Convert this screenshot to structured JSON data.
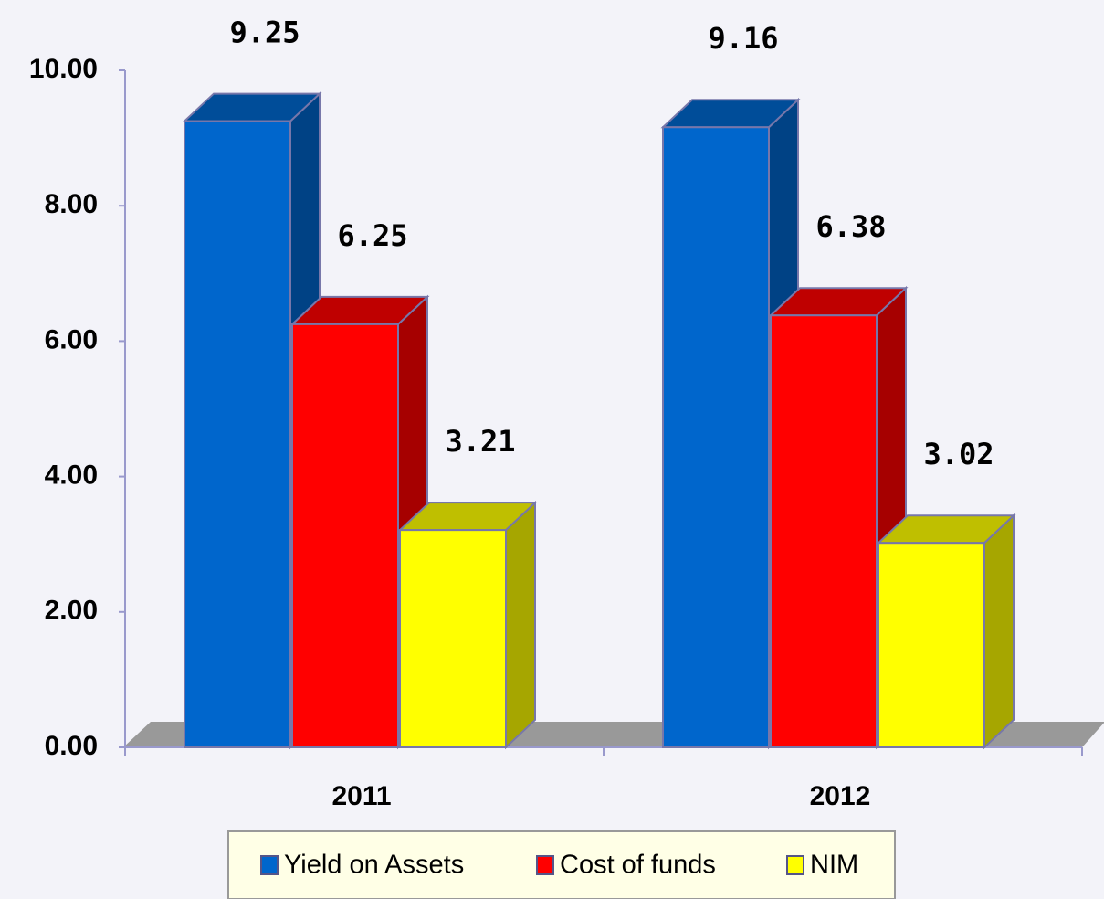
{
  "chart_data": {
    "type": "bar3d",
    "categories": [
      "2011",
      "2012"
    ],
    "series": [
      {
        "name": "Yield on Assets",
        "color": "#0066cc",
        "values": [
          9.25,
          9.16
        ]
      },
      {
        "name": "Cost of funds",
        "color": "#ff0000",
        "values": [
          6.25,
          6.38
        ]
      },
      {
        "name": "NIM",
        "color": "#ffff00",
        "values": [
          3.21,
          3.02
        ]
      }
    ],
    "ylim": [
      0,
      10
    ],
    "yticks": [
      {
        "value": 0,
        "label": "0.00"
      },
      {
        "value": 2,
        "label": "2.00"
      },
      {
        "value": 4,
        "label": "4.00"
      },
      {
        "value": 6,
        "label": "6.00"
      },
      {
        "value": 8,
        "label": "8.00"
      },
      {
        "value": 10,
        "label": "10.00"
      }
    ],
    "legend": "bottom"
  }
}
